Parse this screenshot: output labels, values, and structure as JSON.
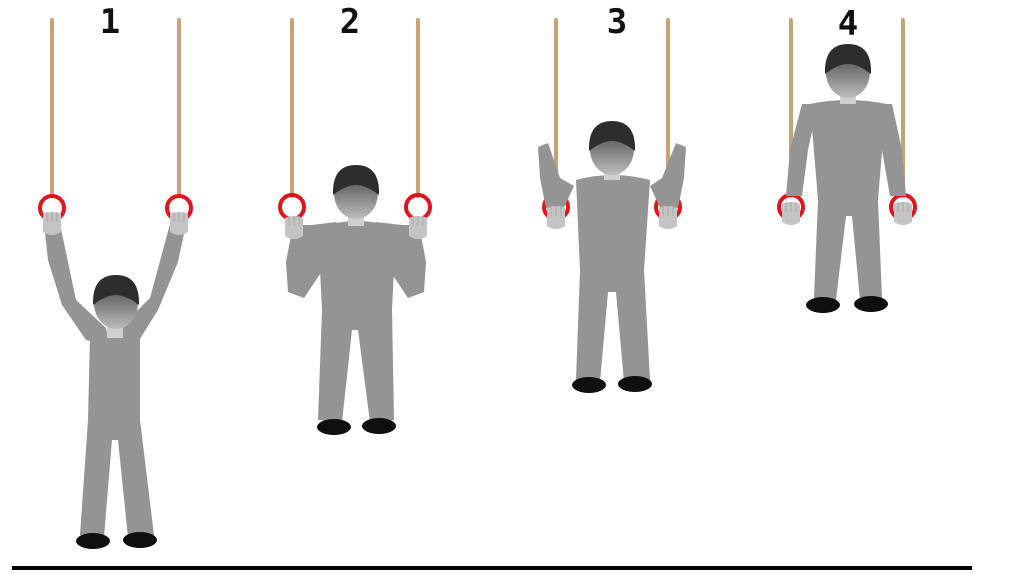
{
  "steps": [
    {
      "label": "1"
    },
    {
      "label": "2"
    },
    {
      "label": "3"
    },
    {
      "label": "4"
    }
  ],
  "colors": {
    "rope": "#c8a37a",
    "ring": "#e0141a",
    "body": "#949494",
    "hand": "#c4c4c4",
    "neck": "#cfcfcf",
    "hair": "#2d2d2d",
    "shoe": "#0f0f0f",
    "ground": "#000000"
  },
  "icons": [
    "rope",
    "gymnastics-ring",
    "person-figure"
  ]
}
